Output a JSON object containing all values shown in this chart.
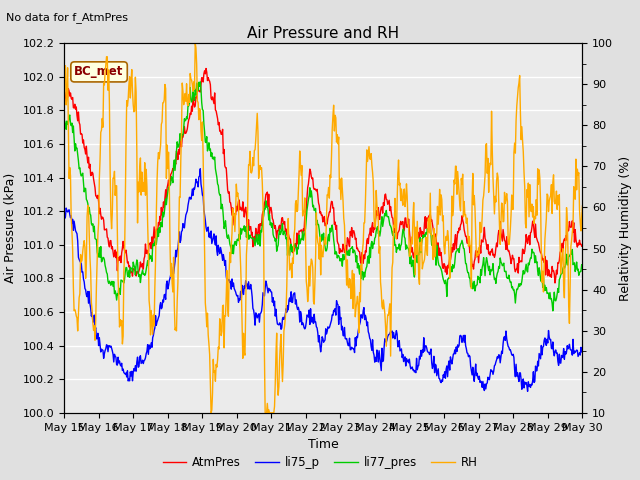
{
  "title": "Air Pressure and RH",
  "top_left_text": "No data for f_AtmPres",
  "annotation_box": "BC_met",
  "xlabel": "Time",
  "ylabel_left": "Air Pressure (kPa)",
  "ylabel_right": "Relativity Humidity (%)",
  "ylim_left": [
    100.0,
    102.2
  ],
  "ylim_right": [
    10,
    100
  ],
  "yticks_left": [
    100.0,
    100.2,
    100.4,
    100.6,
    100.8,
    101.0,
    101.2,
    101.4,
    101.6,
    101.8,
    102.0,
    102.2
  ],
  "yticks_right": [
    10,
    20,
    30,
    40,
    50,
    60,
    70,
    80,
    90,
    100
  ],
  "xtick_labels": [
    "May 15",
    "May 16",
    "May 17",
    "May 18",
    "May 19",
    "May 20",
    "May 21",
    "May 22",
    "May 23",
    "May 24",
    "May 25",
    "May 26",
    "May 27",
    "May 28",
    "May 29",
    "May 30"
  ],
  "legend": [
    {
      "label": "AtmPres",
      "color": "#ff0000"
    },
    {
      "label": "li75_p",
      "color": "#0000ff"
    },
    {
      "label": "li77_pres",
      "color": "#00cc00"
    },
    {
      "label": "RH",
      "color": "#ffaa00"
    }
  ],
  "background_color": "#e0e0e0",
  "plot_bg_color": "#ebebeb",
  "grid_color": "#ffffff",
  "linewidth": 1.0
}
